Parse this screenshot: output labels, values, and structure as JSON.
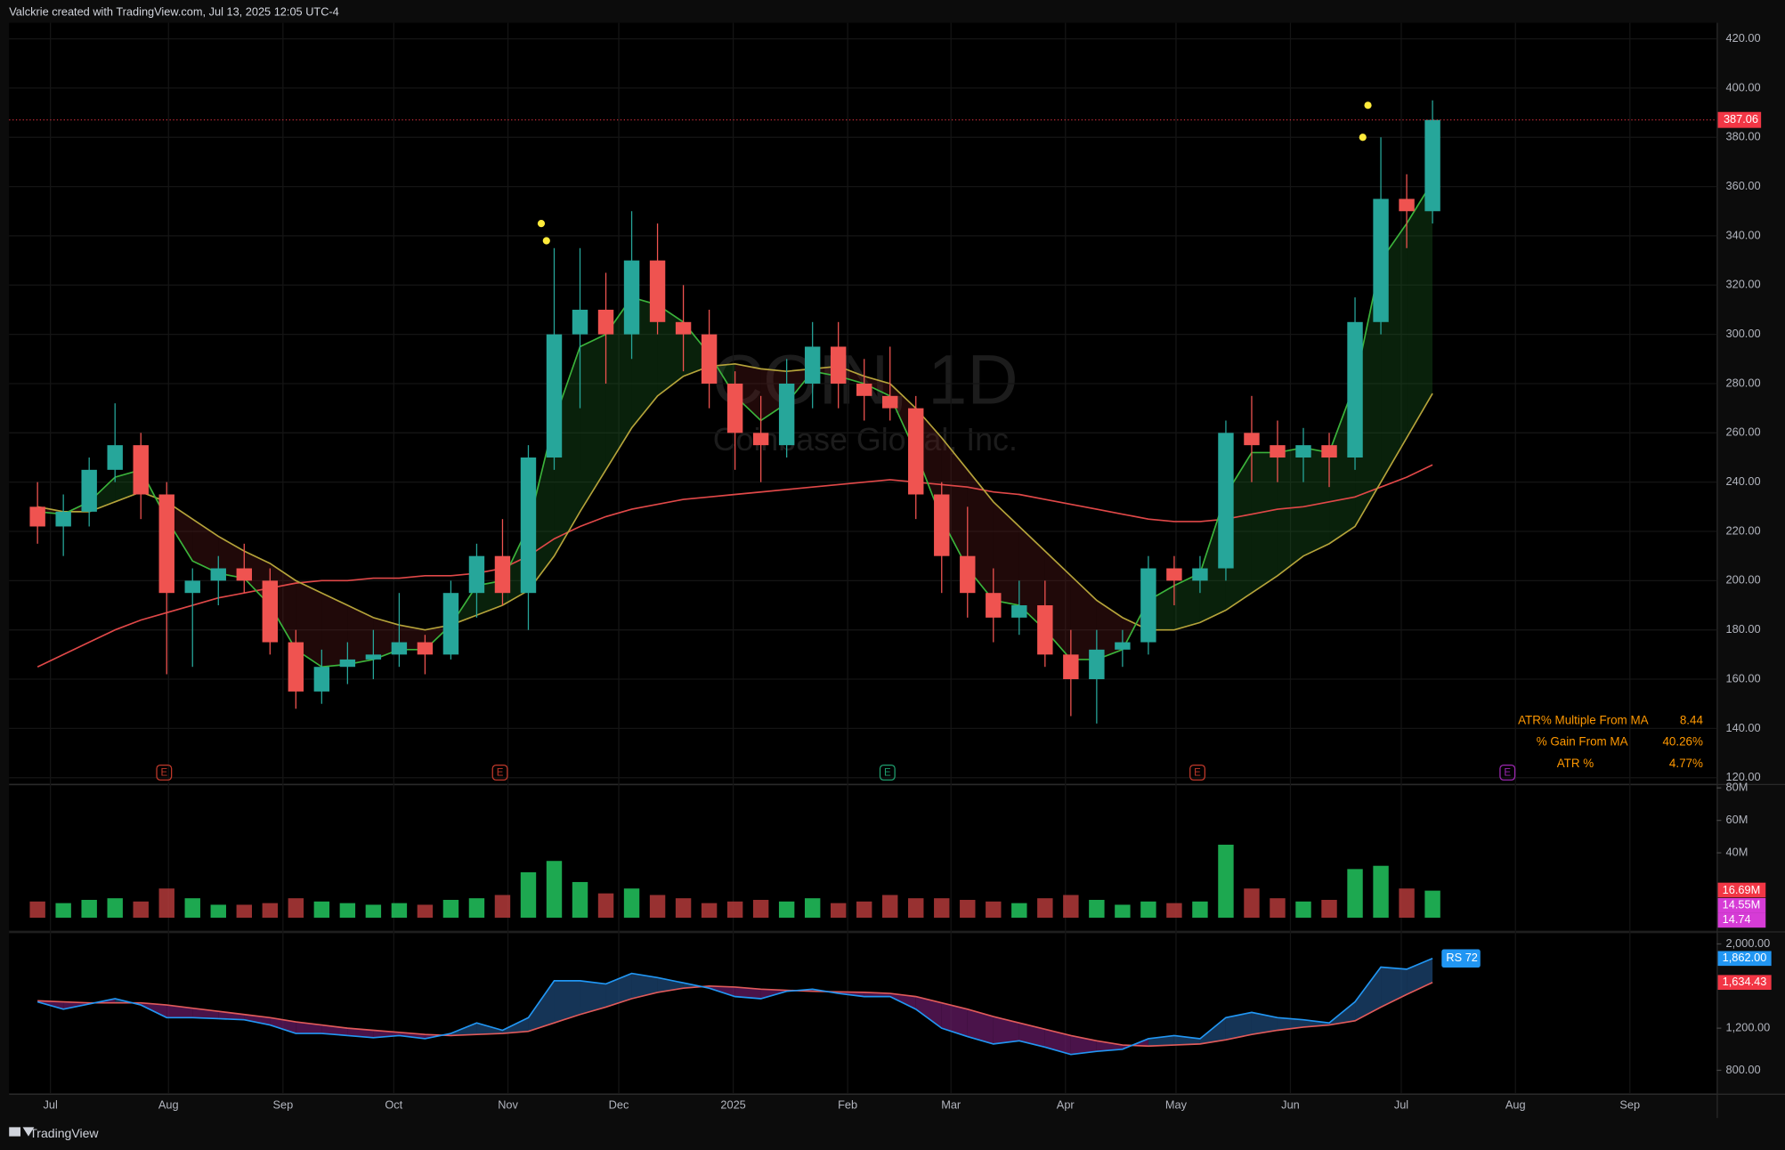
{
  "header": "Valckrie created with TradingView.com, Jul 13, 2025 12:05 UTC-4",
  "footer": "TradingView",
  "chart_data": {
    "type": "candlestick",
    "watermark": "COIN, 1D",
    "watermark_sub": "Coinbase Global, Inc.",
    "xlim": [
      -0.6,
      65.5
    ],
    "xticks": [
      {
        "value": 1.0,
        "label": "Jul"
      },
      {
        "value": 5.57,
        "label": "Aug"
      },
      {
        "value": 10.0,
        "label": "Sep"
      },
      {
        "value": 14.29,
        "label": "Oct"
      },
      {
        "value": 18.71,
        "label": "Nov"
      },
      {
        "value": 23.0,
        "label": "Dec"
      },
      {
        "value": 27.43,
        "label": "2025"
      },
      {
        "value": 31.86,
        "label": "Feb"
      },
      {
        "value": 35.86,
        "label": "Mar"
      },
      {
        "value": 40.29,
        "label": "Apr"
      },
      {
        "value": 44.57,
        "label": "May"
      },
      {
        "value": 49.0,
        "label": "Jun"
      },
      {
        "value": 53.29,
        "label": "Jul"
      },
      {
        "value": 57.71,
        "label": "Aug"
      },
      {
        "value": 62.14,
        "label": "Sep"
      }
    ],
    "ylim": [
      117.7,
      426.5
    ],
    "yticks": [
      {
        "value": 120,
        "label": "120.00"
      },
      {
        "value": 140,
        "label": "140.00"
      },
      {
        "value": 160,
        "label": "160.00"
      },
      {
        "value": 180,
        "label": "180.00"
      },
      {
        "value": 200,
        "label": "200.00"
      },
      {
        "value": 220,
        "label": "220.00"
      },
      {
        "value": 240,
        "label": "240.00"
      },
      {
        "value": 260,
        "label": "260.00"
      },
      {
        "value": 280,
        "label": "280.00"
      },
      {
        "value": 300,
        "label": "300.00"
      },
      {
        "value": 320,
        "label": "320.00"
      },
      {
        "value": 340,
        "label": "340.00"
      },
      {
        "value": 360,
        "label": "360.00"
      },
      {
        "value": 380,
        "label": "380.00"
      },
      {
        "value": 400,
        "label": "400.00"
      },
      {
        "value": 420,
        "label": "420.00"
      }
    ],
    "up_color": "#26a69a",
    "down_color": "#ef5350",
    "open": [
      230,
      222,
      228,
      245,
      255,
      235,
      195,
      200,
      205,
      200,
      175,
      155,
      165,
      168,
      170,
      175,
      170,
      195,
      210,
      195,
      250,
      300,
      310,
      300,
      330,
      305,
      300,
      280,
      260,
      255,
      280,
      295,
      280,
      275,
      270,
      235,
      210,
      195,
      185,
      190,
      170,
      160,
      172,
      175,
      205,
      200,
      205,
      260,
      255,
      250,
      255,
      250,
      305,
      355,
      350
    ],
    "high": [
      240,
      235,
      250,
      272,
      260,
      240,
      205,
      210,
      215,
      205,
      180,
      172,
      175,
      180,
      195,
      178,
      200,
      215,
      225,
      255,
      335,
      335,
      325,
      350,
      345,
      320,
      310,
      285,
      275,
      290,
      305,
      305,
      290,
      295,
      275,
      240,
      230,
      205,
      200,
      200,
      180,
      180,
      180,
      210,
      210,
      210,
      265,
      275,
      265,
      262,
      260,
      315,
      380,
      365,
      395
    ],
    "low": [
      215,
      210,
      222,
      240,
      225,
      162,
      165,
      190,
      195,
      170,
      148,
      150,
      158,
      160,
      165,
      162,
      168,
      185,
      190,
      180,
      245,
      270,
      280,
      290,
      300,
      285,
      270,
      245,
      240,
      250,
      270,
      270,
      265,
      265,
      225,
      195,
      185,
      175,
      178,
      165,
      145,
      142,
      165,
      170,
      190,
      195,
      200,
      240,
      240,
      240,
      238,
      245,
      300,
      335,
      345
    ],
    "close": [
      222,
      228,
      245,
      255,
      235,
      195,
      200,
      205,
      200,
      175,
      155,
      165,
      168,
      170,
      175,
      170,
      195,
      210,
      195,
      250,
      300,
      310,
      300,
      330,
      305,
      300,
      280,
      260,
      255,
      280,
      295,
      280,
      275,
      270,
      235,
      210,
      195,
      185,
      190,
      170,
      160,
      172,
      175,
      205,
      200,
      205,
      260,
      255,
      250,
      255,
      250,
      305,
      355,
      350,
      387.06
    ],
    "last_label": "387.06",
    "last_color": "#f23645",
    "series": [
      {
        "name": "MA 200",
        "color": "#e04848",
        "values": [
          165,
          170,
          175,
          180,
          184,
          187,
          190,
          193,
          195,
          197,
          199,
          200,
          200,
          201,
          201,
          202,
          202,
          203,
          205,
          210,
          217,
          222,
          226,
          229,
          231,
          233,
          234,
          235,
          236,
          237,
          238,
          239,
          240,
          241,
          240,
          239,
          238,
          236,
          235,
          233,
          231,
          229,
          227,
          225,
          224,
          224,
          225,
          227,
          229,
          230,
          232,
          234,
          238,
          242,
          247
        ]
      },
      {
        "name": "MA 50",
        "color": "#b5a33a",
        "values": [
          230,
          228,
          228,
          232,
          236,
          232,
          225,
          218,
          212,
          207,
          200,
          195,
          190,
          185,
          182,
          180,
          182,
          186,
          190,
          196,
          210,
          228,
          245,
          262,
          275,
          283,
          287,
          288,
          286,
          285,
          286,
          287,
          283,
          280,
          270,
          258,
          245,
          232,
          222,
          212,
          202,
          192,
          185,
          180,
          180,
          183,
          188,
          195,
          202,
          210,
          215,
          222,
          240,
          258,
          276
        ]
      },
      {
        "name": "EMA 21",
        "color": "#3bb33b",
        "values": [
          228,
          227,
          232,
          242,
          245,
          225,
          208,
          203,
          201,
          190,
          172,
          165,
          166,
          168,
          172,
          172,
          182,
          198,
          200,
          222,
          265,
          295,
          300,
          315,
          312,
          305,
          292,
          275,
          265,
          272,
          285,
          283,
          280,
          275,
          252,
          225,
          205,
          192,
          190,
          180,
          168,
          168,
          172,
          192,
          198,
          203,
          235,
          252,
          252,
          254,
          252,
          280,
          330,
          345,
          362
        ]
      }
    ],
    "signals": {
      "color": "#ffeb3b",
      "x": [
        20.2,
        20.0,
        51.8,
        52.0
      ],
      "y": [
        338,
        345,
        380,
        393
      ]
    },
    "earnings": {
      "x": [
        5.4,
        18.4,
        33.4,
        45.4,
        57.4
      ],
      "colors": [
        "#c0392b",
        "#c0392b",
        "#1f9e6e",
        "#c0392b",
        "#9c27b0"
      ],
      "label": "E"
    },
    "stats": [
      {
        "label": "ATR% Multiple From MA",
        "value": "8.44"
      },
      {
        "label": "% Gain From MA",
        "value": "40.26%"
      },
      {
        "label": "ATR %",
        "value": "4.77%"
      }
    ],
    "volume": {
      "ylim": [
        0,
        80
      ],
      "yticks": [
        {
          "value": 40,
          "label": "40M"
        },
        {
          "value": 60,
          "label": "60M"
        },
        {
          "value": 80,
          "label": "80M"
        }
      ],
      "values": [
        10,
        9,
        11,
        12,
        10,
        18,
        12,
        8,
        8,
        9,
        12,
        10,
        9,
        8,
        9,
        8,
        11,
        12,
        14,
        28,
        35,
        22,
        15,
        18,
        14,
        12,
        9,
        10,
        11,
        10,
        12,
        9,
        10,
        14,
        12,
        12,
        11,
        10,
        9,
        12,
        14,
        11,
        8,
        10,
        9,
        10,
        45,
        18,
        12,
        10,
        11,
        30,
        32,
        18,
        16.69
      ],
      "last_label": "16.69M",
      "ma_labels": [
        "14.55M",
        "14.74"
      ]
    },
    "rs": {
      "ylim": [
        800,
        2000
      ],
      "yticks": [
        {
          "value": 800,
          "label": "800.00"
        },
        {
          "value": 1200,
          "label": "1,200.00"
        },
        {
          "value": 2000,
          "label": "2,000.00"
        }
      ],
      "badge": "RS 72",
      "line": {
        "color": "#2196f3",
        "last_label": "1,862.00",
        "values": [
          1450,
          1380,
          1430,
          1480,
          1420,
          1300,
          1300,
          1290,
          1280,
          1230,
          1150,
          1150,
          1130,
          1110,
          1130,
          1100,
          1150,
          1250,
          1180,
          1300,
          1650,
          1650,
          1620,
          1720,
          1680,
          1630,
          1580,
          1500,
          1480,
          1550,
          1570,
          1530,
          1500,
          1500,
          1380,
          1200,
          1120,
          1050,
          1080,
          1020,
          950,
          980,
          1000,
          1100,
          1130,
          1100,
          1300,
          1350,
          1300,
          1280,
          1250,
          1450,
          1780,
          1760,
          1862
        ]
      },
      "ma": {
        "color": "#f23645",
        "last_label": "1,634.43",
        "values": [
          1460,
          1450,
          1440,
          1440,
          1440,
          1420,
          1390,
          1360,
          1330,
          1300,
          1260,
          1230,
          1200,
          1180,
          1160,
          1140,
          1130,
          1140,
          1150,
          1170,
          1250,
          1330,
          1400,
          1480,
          1540,
          1580,
          1600,
          1590,
          1570,
          1560,
          1550,
          1545,
          1540,
          1530,
          1500,
          1440,
          1380,
          1310,
          1250,
          1190,
          1130,
          1080,
          1040,
          1030,
          1040,
          1050,
          1090,
          1140,
          1180,
          1210,
          1230,
          1270,
          1400,
          1520,
          1634.43
        ]
      }
    }
  }
}
